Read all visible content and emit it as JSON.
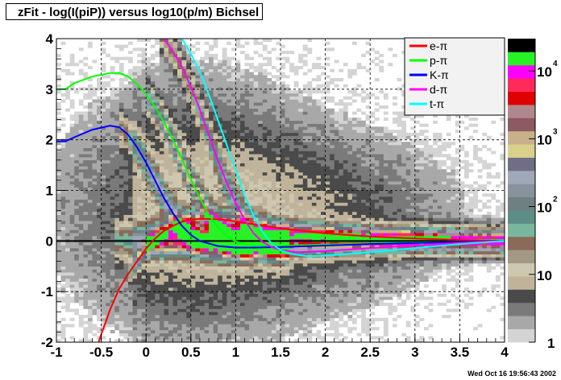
{
  "window": {
    "title": "zFit - log(I(piP)) versus log10(p/m) Bichsel",
    "timestamp": "Wed Oct 16 19:56:43 2002"
  },
  "chart_data": {
    "type": "heatmap",
    "title": "zFit - log(I(piP)) versus log10(p/m) Bichsel",
    "xlabel": "",
    "ylabel": "",
    "xlim": [
      -1,
      4
    ],
    "ylim": [
      -2,
      4
    ],
    "grid": true,
    "x_ticks": [
      -1,
      -0.5,
      0,
      0.5,
      1,
      1.5,
      2,
      2.5,
      3,
      3.5,
      4
    ],
    "x_tick_labels": [
      "-1",
      "-0.5",
      "0",
      "0.5",
      "1",
      "1.5",
      "2",
      "2.5",
      "3",
      "3.5",
      "4"
    ],
    "y_ticks": [
      -2,
      -1,
      0,
      1,
      2,
      3,
      4
    ],
    "y_tick_labels": [
      "-2",
      "-1",
      "0",
      "1",
      "2",
      "3",
      "4"
    ],
    "colorbar": {
      "scale": "log",
      "labels": [
        {
          "base": "1",
          "exp": "",
          "value": 1
        },
        {
          "base": "10",
          "exp": "",
          "value": 10
        },
        {
          "base": "10",
          "exp": "2",
          "value": 100
        },
        {
          "base": "10",
          "exp": "3",
          "value": 1000
        },
        {
          "base": "10",
          "exp": "4",
          "value": 10000
        }
      ],
      "range": [
        1,
        30000
      ],
      "colors": [
        "#d4d4d4",
        "#a8a8a8",
        "#7a7a7a",
        "#4a4a4a",
        "#bfb39a",
        "#cec7b0",
        "#a39883",
        "#8b6a58",
        "#78b79d",
        "#5e8d86",
        "#6f7f82",
        "#87929c",
        "#9ea8b8",
        "#6f6e86",
        "#d9d08c",
        "#c7b08a",
        "#8d5a61",
        "#b0878c",
        "#e00000",
        "#ff2a5a",
        "#ff00ff",
        "#26f226",
        "#000000"
      ]
    },
    "legend": {
      "placement": "top-right",
      "entries": [
        {
          "label": "e-π",
          "color": "#ff0000"
        },
        {
          "label": "p-π",
          "color": "#00ff00"
        },
        {
          "label": "K-π",
          "color": "#0000ff"
        },
        {
          "label": "d-π",
          "color": "#ff00ff"
        },
        {
          "label": "t-π",
          "color": "#00ffff"
        }
      ]
    },
    "series": [
      {
        "name": "e-π",
        "color": "#ff0000",
        "x": [
          -0.55,
          -0.5,
          -0.4,
          -0.3,
          -0.2,
          -0.1,
          0,
          0.1,
          0.2,
          0.3,
          0.4,
          0.5,
          0.6,
          0.8,
          1,
          1.2,
          1.5,
          2,
          2.5,
          3,
          3.5,
          4
        ],
        "y": [
          -2.1,
          -1.85,
          -1.35,
          -0.95,
          -0.65,
          -0.4,
          -0.15,
          0.05,
          0.2,
          0.3,
          0.38,
          0.42,
          0.44,
          0.43,
          0.39,
          0.33,
          0.25,
          0.15,
          0.09,
          0.05,
          0.02,
          0.0
        ]
      },
      {
        "name": "p-π",
        "color": "#00ff00",
        "x": [
          -1,
          -0.9,
          -0.8,
          -0.6,
          -0.4,
          -0.3,
          -0.2,
          -0.1,
          0,
          0.1,
          0.2,
          0.3,
          0.4,
          0.5,
          0.6,
          0.7,
          0.8,
          0.9,
          1,
          1.1,
          1.2,
          1.4,
          1.6,
          2,
          2.5,
          3,
          3.5,
          4
        ],
        "y": [
          3.0,
          3.0,
          3.12,
          3.25,
          3.32,
          3.32,
          3.25,
          3.1,
          2.9,
          2.65,
          2.35,
          2.0,
          1.62,
          1.22,
          0.85,
          0.52,
          0.27,
          0.1,
          -0.01,
          -0.06,
          -0.09,
          -0.1,
          -0.09,
          -0.07,
          -0.05,
          -0.03,
          -0.02,
          0.0
        ]
      },
      {
        "name": "K-π",
        "color": "#0000ff",
        "x": [
          -1,
          -0.9,
          -0.8,
          -0.6,
          -0.4,
          -0.3,
          -0.2,
          -0.1,
          0,
          0.1,
          0.2,
          0.3,
          0.4,
          0.5,
          0.6,
          0.8,
          1,
          1.2,
          1.5,
          2,
          2.5,
          3,
          3.5,
          4
        ],
        "y": [
          1.97,
          1.97,
          2.05,
          2.2,
          2.28,
          2.25,
          2.1,
          1.85,
          1.55,
          1.2,
          0.85,
          0.55,
          0.3,
          0.12,
          0.0,
          -0.1,
          -0.13,
          -0.13,
          -0.12,
          -0.09,
          -0.06,
          -0.04,
          -0.02,
          0.0
        ]
      },
      {
        "name": "d-π",
        "color": "#ff00ff",
        "x": [
          0.15,
          0.2,
          0.3,
          0.4,
          0.5,
          0.6,
          0.7,
          0.8,
          0.9,
          1,
          1.1,
          1.2,
          1.3,
          1.4,
          1.5,
          1.7,
          2,
          2.5,
          3,
          3.5,
          4
        ],
        "y": [
          4.1,
          4.0,
          3.75,
          3.45,
          3.05,
          2.6,
          2.1,
          1.6,
          1.15,
          0.75,
          0.42,
          0.15,
          -0.02,
          -0.12,
          -0.18,
          -0.22,
          -0.2,
          -0.14,
          -0.09,
          -0.04,
          0.0
        ]
      },
      {
        "name": "t-π",
        "color": "#00ffff",
        "x": [
          0.35,
          0.4,
          0.5,
          0.6,
          0.7,
          0.8,
          0.9,
          1,
          1.1,
          1.2,
          1.3,
          1.4,
          1.5,
          1.6,
          1.8,
          2,
          2.5,
          3,
          3.5,
          4
        ],
        "y": [
          4.1,
          4.0,
          3.7,
          3.35,
          2.9,
          2.4,
          1.9,
          1.4,
          0.9,
          0.5,
          0.18,
          -0.05,
          -0.18,
          -0.25,
          -0.3,
          -0.29,
          -0.22,
          -0.14,
          -0.06,
          0.0
        ]
      }
    ]
  }
}
